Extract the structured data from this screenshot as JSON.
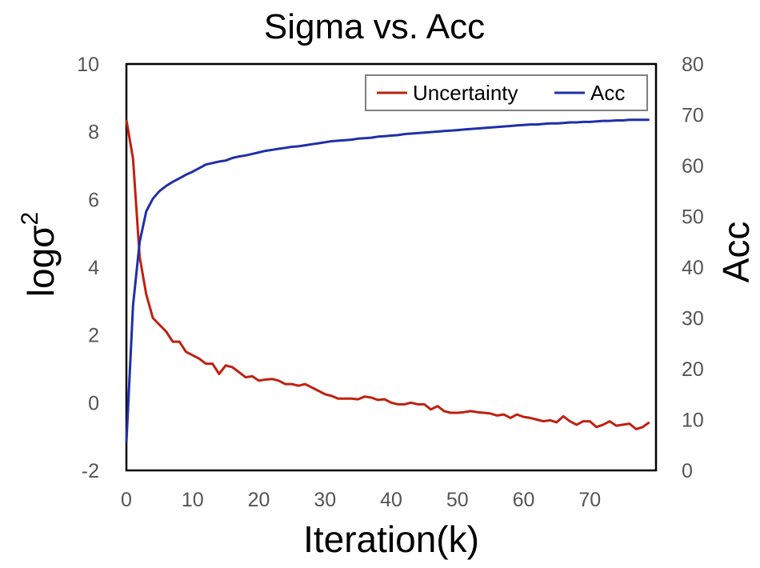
{
  "chart_data": {
    "type": "line",
    "title": "Sigma vs. Acc",
    "xlabel": "Iteration(k)",
    "ylabel_left": "logσ",
    "ylabel_left_superscript": "2",
    "ylabel_right": "Acc",
    "xlim": [
      0,
      80
    ],
    "ylim_left": [
      -2,
      10
    ],
    "ylim_right": [
      0,
      80
    ],
    "x_ticks": [
      0,
      10,
      20,
      30,
      40,
      50,
      60,
      70
    ],
    "y_left_ticks": [
      -2,
      0,
      2,
      4,
      6,
      8,
      10
    ],
    "y_right_ticks": [
      0,
      10,
      20,
      30,
      40,
      50,
      60,
      70,
      80
    ],
    "grid": false,
    "legend_position": "top-right",
    "series": [
      {
        "name": "Uncertainty",
        "axis": "left",
        "color": "#c0200f",
        "points": [
          [
            0,
            8.35
          ],
          [
            1,
            7.2
          ],
          [
            2,
            4.3
          ],
          [
            3,
            3.2
          ],
          [
            4,
            2.5
          ],
          [
            5,
            2.3
          ],
          [
            6,
            2.1
          ],
          [
            7,
            1.8
          ],
          [
            8,
            1.8
          ],
          [
            9,
            1.5
          ],
          [
            10,
            1.4
          ],
          [
            11,
            1.3
          ],
          [
            12,
            1.15
          ],
          [
            13,
            1.15
          ],
          [
            14,
            0.85
          ],
          [
            15,
            1.1
          ],
          [
            16,
            1.05
          ],
          [
            17,
            0.9
          ],
          [
            18,
            0.75
          ],
          [
            19,
            0.78
          ],
          [
            20,
            0.65
          ],
          [
            21,
            0.68
          ],
          [
            22,
            0.7
          ],
          [
            23,
            0.65
          ],
          [
            24,
            0.55
          ],
          [
            25,
            0.55
          ],
          [
            26,
            0.5
          ],
          [
            27,
            0.55
          ],
          [
            28,
            0.45
          ],
          [
            29,
            0.35
          ],
          [
            30,
            0.25
          ],
          [
            31,
            0.2
          ],
          [
            32,
            0.12
          ],
          [
            33,
            0.12
          ],
          [
            34,
            0.12
          ],
          [
            35,
            0.1
          ],
          [
            36,
            0.18
          ],
          [
            37,
            0.15
          ],
          [
            38,
            0.08
          ],
          [
            39,
            0.1
          ],
          [
            40,
            0.0
          ],
          [
            41,
            -0.05
          ],
          [
            42,
            -0.05
          ],
          [
            43,
            0.0
          ],
          [
            44,
            -0.05
          ],
          [
            45,
            -0.05
          ],
          [
            46,
            -0.2
          ],
          [
            47,
            -0.1
          ],
          [
            48,
            -0.25
          ],
          [
            49,
            -0.3
          ],
          [
            50,
            -0.3
          ],
          [
            51,
            -0.28
          ],
          [
            52,
            -0.25
          ],
          [
            53,
            -0.28
          ],
          [
            54,
            -0.3
          ],
          [
            55,
            -0.32
          ],
          [
            56,
            -0.38
          ],
          [
            57,
            -0.35
          ],
          [
            58,
            -0.45
          ],
          [
            59,
            -0.35
          ],
          [
            60,
            -0.42
          ],
          [
            61,
            -0.45
          ],
          [
            62,
            -0.5
          ],
          [
            63,
            -0.55
          ],
          [
            64,
            -0.52
          ],
          [
            65,
            -0.58
          ],
          [
            66,
            -0.4
          ],
          [
            67,
            -0.55
          ],
          [
            68,
            -0.65
          ],
          [
            69,
            -0.55
          ],
          [
            70,
            -0.55
          ],
          [
            71,
            -0.72
          ],
          [
            72,
            -0.65
          ],
          [
            73,
            -0.55
          ],
          [
            74,
            -0.68
          ],
          [
            75,
            -0.65
          ],
          [
            76,
            -0.62
          ],
          [
            77,
            -0.78
          ],
          [
            78,
            -0.72
          ],
          [
            79,
            -0.58
          ]
        ]
      },
      {
        "name": "Acc",
        "axis": "right",
        "color": "#1f2fa8",
        "points": [
          [
            0,
            5.5
          ],
          [
            1,
            32.5
          ],
          [
            2,
            45.0
          ],
          [
            3,
            51.0
          ],
          [
            4,
            53.5
          ],
          [
            5,
            55.0
          ],
          [
            6,
            56.0
          ],
          [
            7,
            56.8
          ],
          [
            8,
            57.5
          ],
          [
            9,
            58.2
          ],
          [
            10,
            58.8
          ],
          [
            11,
            59.5
          ],
          [
            12,
            60.2
          ],
          [
            13,
            60.5
          ],
          [
            14,
            60.8
          ],
          [
            15,
            61.0
          ],
          [
            16,
            61.5
          ],
          [
            17,
            61.8
          ],
          [
            18,
            62.0
          ],
          [
            19,
            62.3
          ],
          [
            20,
            62.6
          ],
          [
            21,
            62.9
          ],
          [
            22,
            63.1
          ],
          [
            23,
            63.3
          ],
          [
            24,
            63.5
          ],
          [
            25,
            63.7
          ],
          [
            26,
            63.8
          ],
          [
            27,
            64.0
          ],
          [
            28,
            64.2
          ],
          [
            29,
            64.4
          ],
          [
            30,
            64.6
          ],
          [
            31,
            64.8
          ],
          [
            32,
            64.9
          ],
          [
            33,
            65.0
          ],
          [
            34,
            65.1
          ],
          [
            35,
            65.3
          ],
          [
            36,
            65.4
          ],
          [
            37,
            65.5
          ],
          [
            38,
            65.7
          ],
          [
            39,
            65.8
          ],
          [
            40,
            65.9
          ],
          [
            41,
            66.0
          ],
          [
            42,
            66.2
          ],
          [
            43,
            66.3
          ],
          [
            44,
            66.4
          ],
          [
            45,
            66.5
          ],
          [
            46,
            66.6
          ],
          [
            47,
            66.7
          ],
          [
            48,
            66.8
          ],
          [
            49,
            66.9
          ],
          [
            50,
            67.0
          ],
          [
            51,
            67.1
          ],
          [
            52,
            67.2
          ],
          [
            53,
            67.3
          ],
          [
            54,
            67.4
          ],
          [
            55,
            67.5
          ],
          [
            56,
            67.6
          ],
          [
            57,
            67.7
          ],
          [
            58,
            67.8
          ],
          [
            59,
            67.9
          ],
          [
            60,
            68.0
          ],
          [
            61,
            68.1
          ],
          [
            62,
            68.1
          ],
          [
            63,
            68.2
          ],
          [
            64,
            68.3
          ],
          [
            65,
            68.3
          ],
          [
            66,
            68.4
          ],
          [
            67,
            68.5
          ],
          [
            68,
            68.5
          ],
          [
            69,
            68.6
          ],
          [
            70,
            68.6
          ],
          [
            71,
            68.7
          ],
          [
            72,
            68.8
          ],
          [
            73,
            68.8
          ],
          [
            74,
            68.9
          ],
          [
            75,
            68.9
          ],
          [
            76,
            69.0
          ],
          [
            77,
            69.0
          ],
          [
            78,
            69.0
          ],
          [
            79,
            69.0
          ]
        ]
      }
    ]
  }
}
